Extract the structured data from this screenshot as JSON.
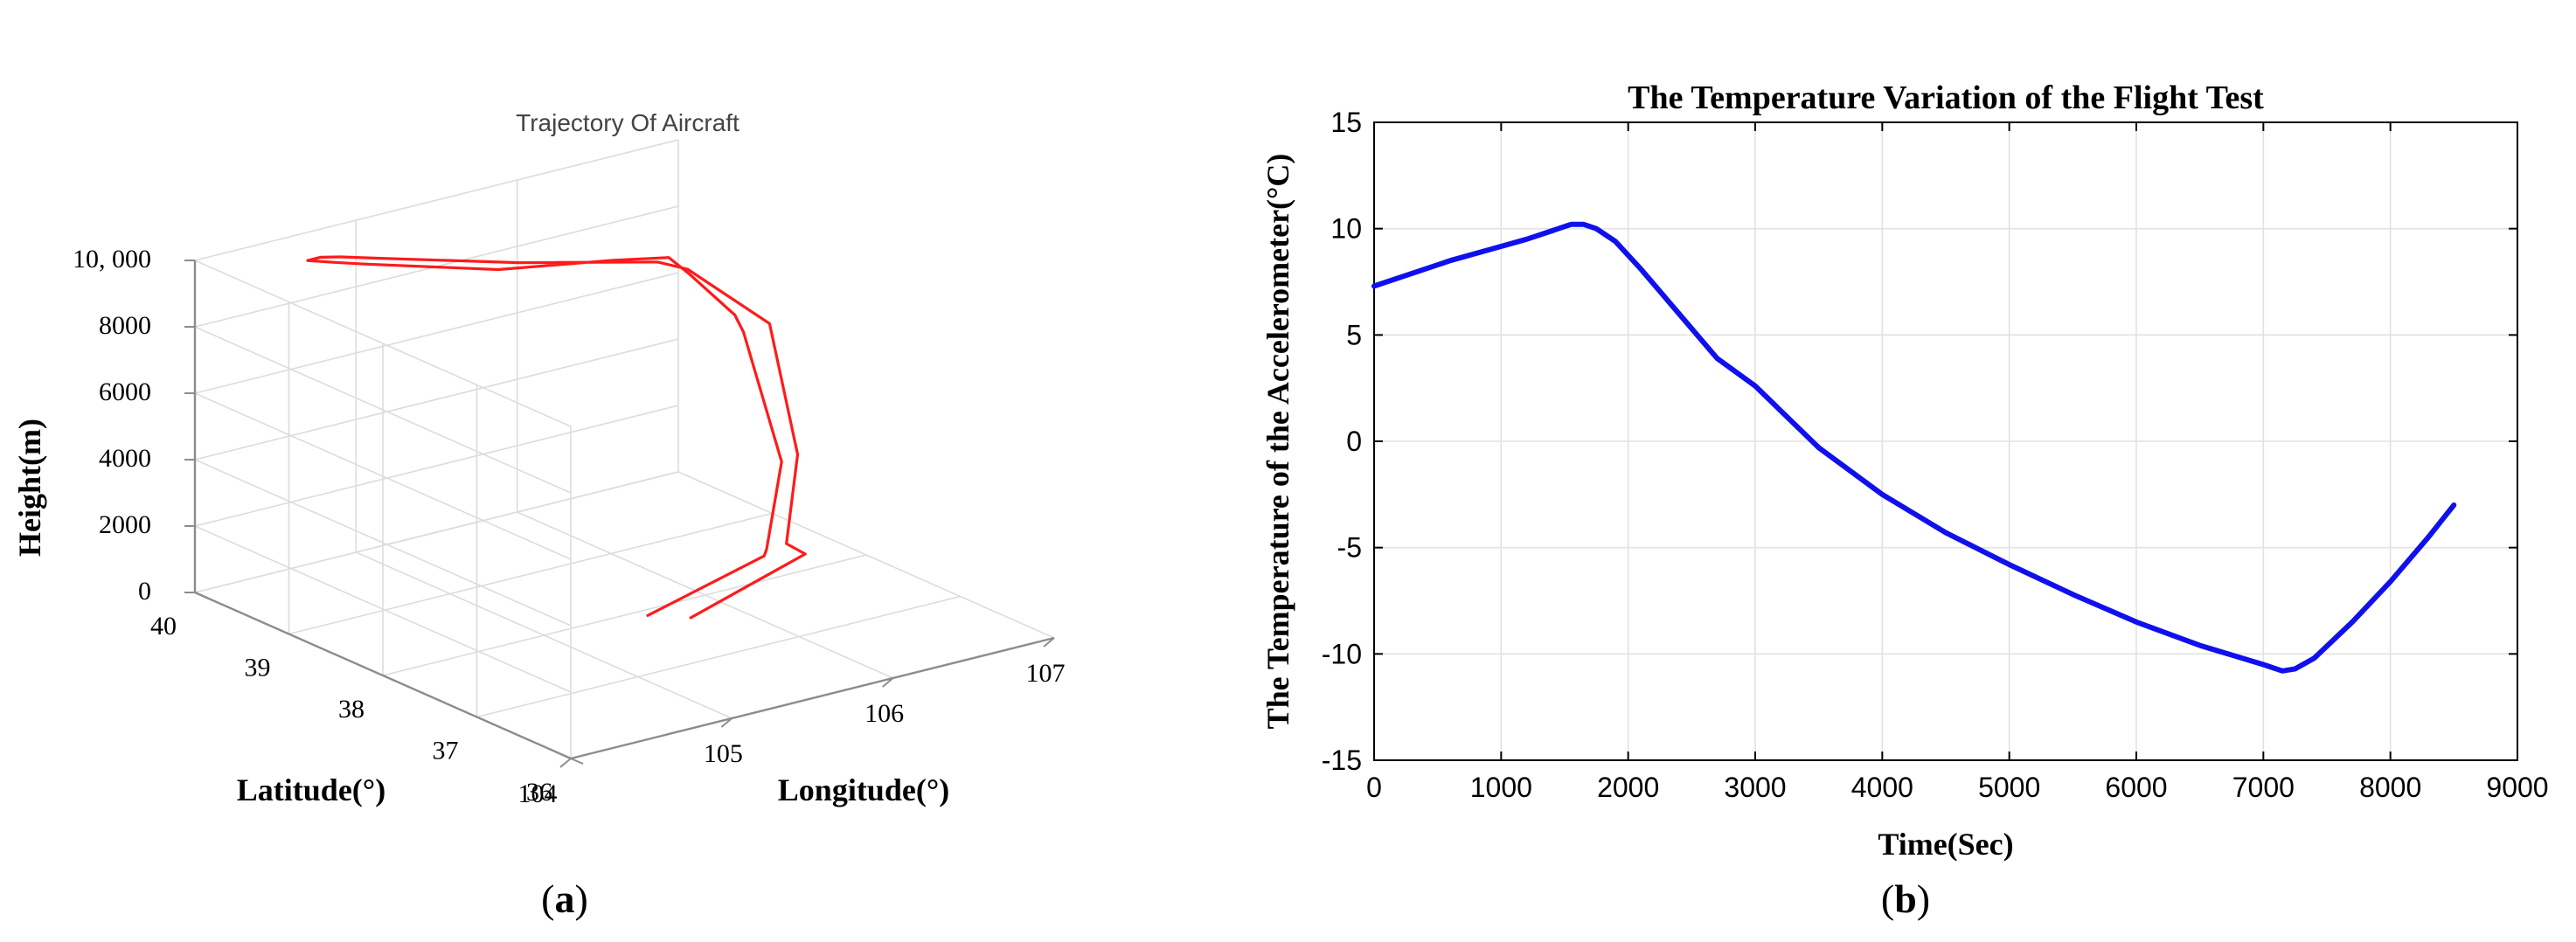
{
  "chart_data": [
    {
      "type": "line3d",
      "panel_label": "a",
      "title": "Trajectory Of Aircraft",
      "xlabel": "Longitude(°)",
      "ylabel": "Latitude(°)",
      "zlabel": "Height(m)",
      "xlim": [
        104,
        107
      ],
      "ylim": [
        36,
        40
      ],
      "zlim": [
        0,
        10000
      ],
      "xticks": [
        "104",
        "105",
        "106",
        "107"
      ],
      "yticks": [
        "36",
        "37",
        "38",
        "39",
        "40"
      ],
      "zticks": [
        "0",
        "2000",
        "4000",
        "6000",
        "8000",
        "10, 000"
      ],
      "grid": true,
      "line_color": "#ff1a1a",
      "series": [
        {
          "name": "trajectory",
          "points": [
            [
              105.55,
              37.85,
              100
            ],
            [
              105.9,
              37.2,
              2300
            ],
            [
              105.88,
              37.14,
              2600
            ],
            [
              105.95,
              37.1,
              5200
            ],
            [
              105.83,
              37.3,
              9000
            ],
            [
              105.8,
              37.34,
              9500
            ],
            [
              105.9,
              38.0,
              9800
            ],
            [
              105.95,
              38.3,
              9850
            ],
            [
              105.75,
              38.55,
              9700
            ],
            [
              105.3,
              39.0,
              9400
            ],
            [
              104.88,
              39.7,
              9200
            ],
            [
              104.8,
              39.9,
              9100
            ],
            [
              104.7,
              40.0,
              9150
            ],
            [
              104.75,
              39.95,
              9250
            ],
            [
              104.82,
              39.85,
              9300
            ],
            [
              104.95,
              39.65,
              9350
            ],
            [
              105.4,
              38.95,
              9550
            ],
            [
              105.85,
              38.25,
              9900
            ],
            [
              105.92,
              38.05,
              9850
            ],
            [
              105.98,
              37.28,
              9100
            ],
            [
              106.02,
              37.05,
              5400
            ],
            [
              105.98,
              37.1,
              2700
            ],
            [
              106.05,
              37.02,
              2400
            ],
            [
              105.7,
              37.65,
              100
            ]
          ]
        }
      ]
    },
    {
      "type": "line",
      "panel_label": "b",
      "title": "The Temperature Variation of the Flight Test",
      "xlabel": "Time(Sec)",
      "ylabel": "The Temperature of the Accelerometer(°C)",
      "xlim": [
        0,
        9000
      ],
      "ylim": [
        -15,
        15
      ],
      "xticks": [
        "0",
        "1000",
        "2000",
        "3000",
        "4000",
        "5000",
        "6000",
        "7000",
        "8000",
        "9000"
      ],
      "yticks": [
        "-15",
        "-10",
        "-5",
        "0",
        "5",
        "10",
        "15"
      ],
      "grid": true,
      "line_color": "#1010ee",
      "series": [
        {
          "name": "temperature",
          "x": [
            0,
            300,
            600,
            900,
            1200,
            1400,
            1550,
            1650,
            1750,
            1900,
            2100,
            2400,
            2700,
            3000,
            3500,
            4000,
            4500,
            5000,
            5500,
            6000,
            6500,
            7000,
            7150,
            7250,
            7400,
            7700,
            8000,
            8300,
            8500
          ],
          "y": [
            7.3,
            7.9,
            8.5,
            9.0,
            9.5,
            9.9,
            10.2,
            10.2,
            10.0,
            9.4,
            8.1,
            6.0,
            3.9,
            2.6,
            -0.3,
            -2.5,
            -4.3,
            -5.8,
            -7.2,
            -8.5,
            -9.6,
            -10.5,
            -10.8,
            -10.7,
            -10.2,
            -8.5,
            -6.6,
            -4.5,
            -3.0
          ]
        }
      ]
    }
  ]
}
